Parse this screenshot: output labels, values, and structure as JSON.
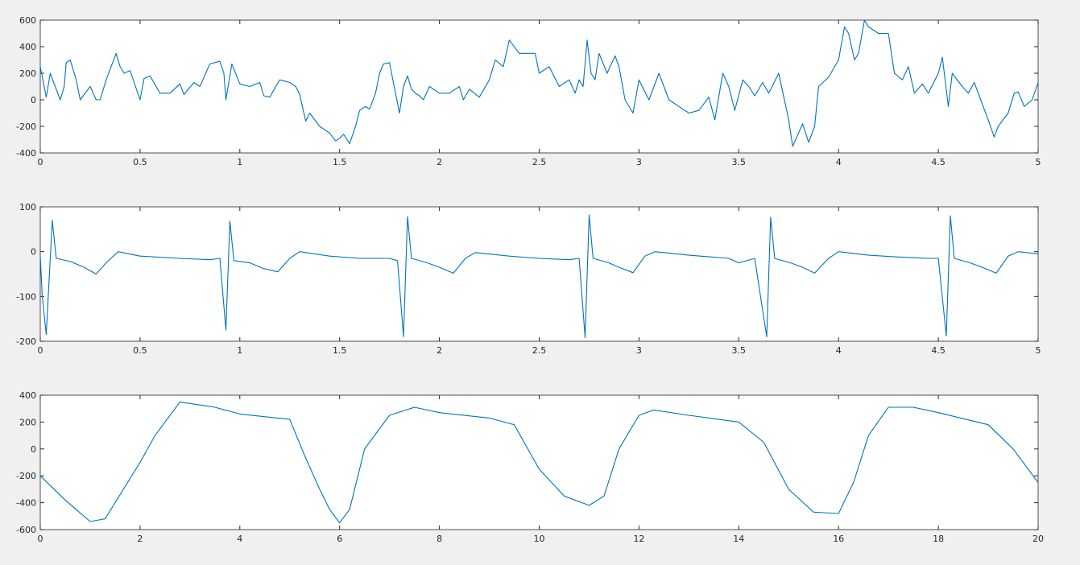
{
  "chart_data": [
    {
      "type": "line",
      "color": "#0072bd",
      "xlim": [
        0,
        5
      ],
      "ylim": [
        -400,
        600
      ],
      "xticks": [
        0,
        0.5,
        1,
        1.5,
        2,
        2.5,
        3,
        3.5,
        4,
        4.5,
        5
      ],
      "yticks": [
        -400,
        -200,
        0,
        200,
        400,
        600
      ],
      "x": [
        0,
        0.03,
        0.05,
        0.08,
        0.1,
        0.12,
        0.13,
        0.15,
        0.18,
        0.2,
        0.25,
        0.28,
        0.3,
        0.33,
        0.38,
        0.4,
        0.42,
        0.45,
        0.5,
        0.52,
        0.55,
        0.6,
        0.65,
        0.7,
        0.72,
        0.77,
        0.8,
        0.85,
        0.9,
        0.92,
        0.93,
        0.96,
        1.0,
        1.05,
        1.1,
        1.12,
        1.15,
        1.18,
        1.2,
        1.25,
        1.28,
        1.3,
        1.33,
        1.35,
        1.4,
        1.45,
        1.48,
        1.5,
        1.52,
        1.55,
        1.58,
        1.6,
        1.63,
        1.65,
        1.68,
        1.7,
        1.72,
        1.75,
        1.78,
        1.8,
        1.82,
        1.84,
        1.86,
        1.88,
        1.9,
        1.92,
        1.95,
        2.0,
        2.05,
        2.1,
        2.12,
        2.15,
        2.2,
        2.25,
        2.28,
        2.32,
        2.35,
        2.4,
        2.45,
        2.48,
        2.5,
        2.55,
        2.6,
        2.65,
        2.68,
        2.7,
        2.72,
        2.74,
        2.76,
        2.78,
        2.8,
        2.84,
        2.88,
        2.9,
        2.93,
        2.97,
        3.0,
        3.05,
        3.1,
        3.15,
        3.2,
        3.25,
        3.3,
        3.35,
        3.38,
        3.42,
        3.45,
        3.48,
        3.52,
        3.55,
        3.58,
        3.62,
        3.65,
        3.7,
        3.75,
        3.77,
        3.8,
        3.82,
        3.85,
        3.88,
        3.9,
        3.95,
        4.0,
        4.03,
        4.05,
        4.08,
        4.1,
        4.13,
        4.15,
        4.2,
        4.25,
        4.28,
        4.32,
        4.35,
        4.38,
        4.42,
        4.45,
        4.5,
        4.52,
        4.55,
        4.57,
        4.62,
        4.65,
        4.68,
        4.7,
        4.75,
        4.78,
        4.8,
        4.85,
        4.88,
        4.9,
        4.93,
        4.97,
        5.0
      ],
      "values": [
        250,
        20,
        200,
        80,
        0,
        100,
        280,
        300,
        150,
        0,
        100,
        0,
        0,
        150,
        350,
        250,
        200,
        220,
        0,
        160,
        180,
        50,
        50,
        120,
        40,
        130,
        100,
        270,
        290,
        200,
        0,
        270,
        120,
        100,
        130,
        30,
        20,
        100,
        150,
        130,
        100,
        40,
        -160,
        -100,
        -200,
        -250,
        -310,
        -290,
        -260,
        -330,
        -200,
        -80,
        -50,
        -70,
        50,
        200,
        270,
        280,
        50,
        -100,
        100,
        180,
        80,
        50,
        30,
        0,
        100,
        50,
        50,
        100,
        0,
        80,
        20,
        150,
        300,
        250,
        450,
        350,
        350,
        350,
        200,
        250,
        100,
        150,
        50,
        150,
        100,
        450,
        200,
        150,
        350,
        200,
        330,
        250,
        0,
        -100,
        150,
        0,
        200,
        0,
        -50,
        -100,
        -80,
        20,
        -150,
        200,
        100,
        -80,
        150,
        100,
        30,
        130,
        50,
        200,
        -150,
        -350,
        -250,
        -180,
        -320,
        -200,
        100,
        170,
        300,
        550,
        500,
        300,
        350,
        600,
        550,
        500,
        500,
        200,
        150,
        250,
        50,
        120,
        50,
        200,
        320,
        -50,
        200,
        100,
        50,
        130,
        50,
        -150,
        -280,
        -200,
        -100,
        50,
        60,
        -50,
        0,
        130
      ]
    },
    {
      "type": "line",
      "color": "#0072bd",
      "xlim": [
        0,
        5
      ],
      "ylim": [
        -200,
        100
      ],
      "xticks": [
        0,
        0.5,
        1,
        1.5,
        2,
        2.5,
        3,
        3.5,
        4,
        4.5,
        5
      ],
      "yticks": [
        -200,
        -100,
        0,
        100
      ],
      "x": [
        0,
        0.01,
        0.03,
        0.06,
        0.08,
        0.15,
        0.22,
        0.28,
        0.33,
        0.39,
        0.5,
        0.7,
        0.85,
        0.9,
        0.93,
        0.95,
        0.97,
        1.05,
        1.12,
        1.19,
        1.25,
        1.3,
        1.45,
        1.6,
        1.75,
        1.79,
        1.82,
        1.84,
        1.86,
        1.94,
        2.0,
        2.07,
        2.13,
        2.18,
        2.35,
        2.5,
        2.65,
        2.7,
        2.73,
        2.75,
        2.77,
        2.85,
        2.9,
        2.97,
        3.03,
        3.08,
        3.25,
        3.45,
        3.5,
        3.58,
        3.64,
        3.66,
        3.68,
        3.76,
        3.82,
        3.88,
        3.95,
        4.0,
        4.15,
        4.3,
        4.45,
        4.5,
        4.54,
        4.56,
        4.58,
        4.66,
        4.72,
        4.79,
        4.85,
        4.9,
        5.0
      ],
      "values": [
        -10,
        -100,
        -185,
        70,
        -15,
        -22,
        -35,
        -50,
        -25,
        0,
        -10,
        -15,
        -18,
        -15,
        -175,
        68,
        -20,
        -25,
        -38,
        -45,
        -15,
        0,
        -10,
        -15,
        -15,
        -20,
        -190,
        78,
        -15,
        -25,
        -35,
        -48,
        -15,
        -2,
        -10,
        -15,
        -18,
        -15,
        -192,
        82,
        -15,
        -25,
        -35,
        -47,
        -10,
        0,
        -8,
        -15,
        -25,
        -15,
        -190,
        77,
        -15,
        -25,
        -35,
        -48,
        -15,
        0,
        -8,
        -12,
        -15,
        -15,
        -188,
        80,
        -15,
        -25,
        -35,
        -48,
        -10,
        0,
        -5
      ]
    },
    {
      "type": "line",
      "color": "#0072bd",
      "xlim": [
        0,
        20
      ],
      "ylim": [
        -600,
        400
      ],
      "xticks": [
        0,
        2,
        4,
        6,
        8,
        10,
        12,
        14,
        16,
        18,
        20
      ],
      "yticks": [
        -600,
        -400,
        -200,
        0,
        200,
        400
      ],
      "x": [
        0,
        0.5,
        1,
        1.3,
        1.5,
        2,
        2.3,
        2.5,
        2.8,
        3.5,
        4,
        5,
        5.3,
        5.6,
        5.8,
        6,
        6.2,
        6.5,
        7,
        7.5,
        8,
        9,
        9.5,
        10,
        10.5,
        11,
        11.3,
        11.6,
        12,
        12.3,
        13,
        14,
        14.5,
        15,
        15.5,
        16,
        16.3,
        16.6,
        17,
        17.5,
        18,
        19,
        19.5,
        20
      ],
      "values": [
        -200,
        -380,
        -540,
        -520,
        -400,
        -100,
        100,
        200,
        350,
        310,
        260,
        220,
        -50,
        -300,
        -450,
        -550,
        -450,
        0,
        250,
        310,
        270,
        230,
        180,
        -150,
        -350,
        -420,
        -350,
        0,
        250,
        290,
        250,
        200,
        50,
        -300,
        -470,
        -480,
        -250,
        100,
        310,
        310,
        270,
        180,
        0,
        -250
      ]
    }
  ]
}
